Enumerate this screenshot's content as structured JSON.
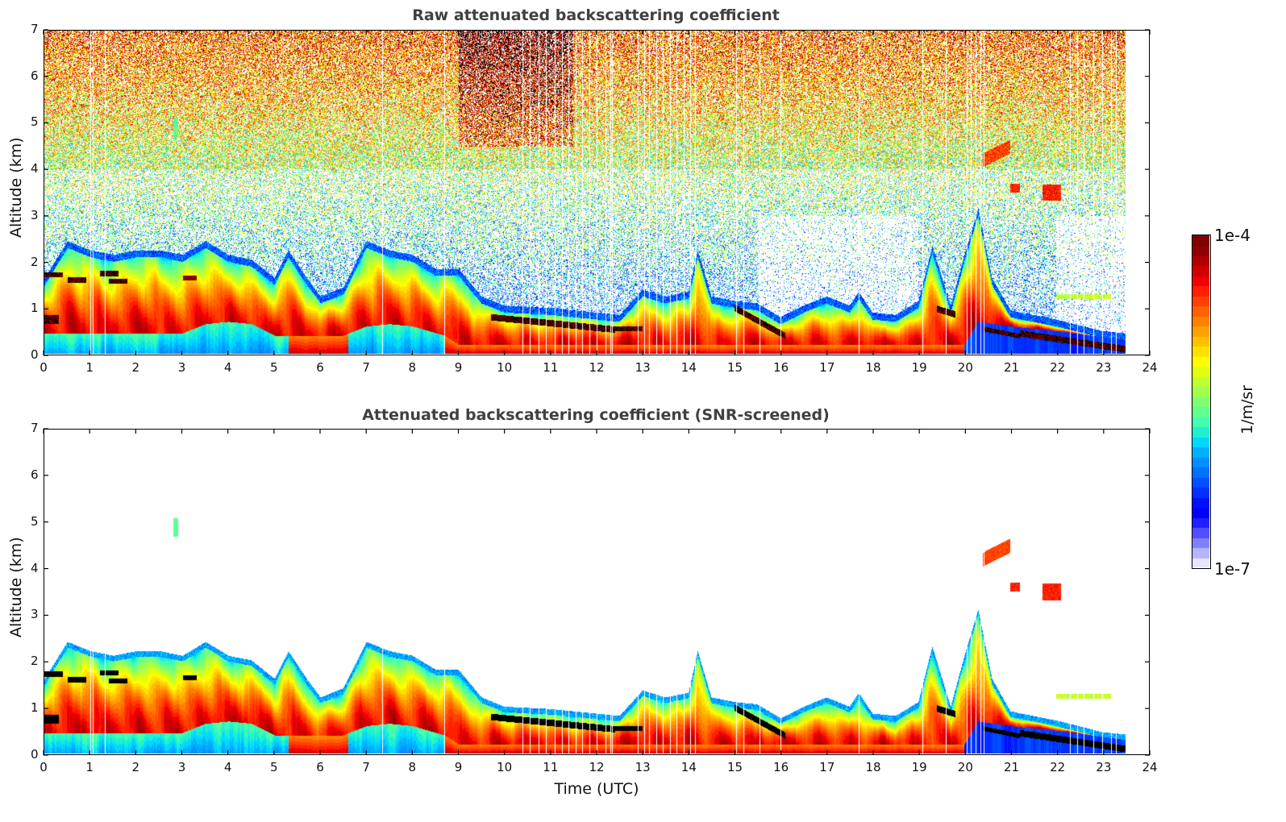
{
  "chart_data": [
    {
      "type": "heatmap",
      "title": "Raw attenuated backscattering coefficient",
      "xlabel": "",
      "ylabel": "Altitude (km)",
      "xlim": [
        0,
        24
      ],
      "ylim": [
        0,
        7
      ],
      "x_ticks": [
        "0",
        "1",
        "2",
        "3",
        "4",
        "5",
        "6",
        "7",
        "8",
        "9",
        "10",
        "11",
        "12",
        "13",
        "14",
        "15",
        "16",
        "17",
        "18",
        "19",
        "20",
        "21",
        "22",
        "23",
        "24"
      ],
      "y_ticks": [
        "0",
        "1",
        "2",
        "3",
        "4",
        "5",
        "6",
        "7"
      ],
      "screened": false,
      "data_end_time": 23.5
    },
    {
      "type": "heatmap",
      "title": "Attenuated backscattering coefficient (SNR-screened)",
      "xlabel": "Time (UTC)",
      "ylabel": "Altitude (km)",
      "xlim": [
        0,
        24
      ],
      "ylim": [
        0,
        7
      ],
      "x_ticks": [
        "0",
        "1",
        "2",
        "3",
        "4",
        "5",
        "6",
        "7",
        "8",
        "9",
        "10",
        "11",
        "12",
        "13",
        "14",
        "15",
        "16",
        "17",
        "18",
        "19",
        "20",
        "21",
        "22",
        "23",
        "24"
      ],
      "y_ticks": [
        "0",
        "1",
        "2",
        "3",
        "4",
        "5",
        "6",
        "7"
      ],
      "screened": true,
      "data_end_time": 23.5
    }
  ],
  "colorbar": {
    "label": "1/m/sr",
    "min_label": "1e-7",
    "max_label": "1e-4",
    "scale": "log",
    "range": [
      1e-07,
      0.0001
    ],
    "colors": [
      "#e6e6fa",
      "#b4b4ff",
      "#8080ff",
      "#5050ff",
      "#2020ff",
      "#0000ff",
      "#0010ff",
      "#0030ff",
      "#0050ff",
      "#0070ff",
      "#0090ff",
      "#00b0ff",
      "#00d8ff",
      "#20f0d0",
      "#40ffb0",
      "#60ff90",
      "#80ff70",
      "#a0ff50",
      "#c0ff30",
      "#e0ff10",
      "#ffff00",
      "#ffe000",
      "#ffc000",
      "#ffa000",
      "#ff8000",
      "#ff6000",
      "#ff4000",
      "#ff2000",
      "#f00000",
      "#d00000",
      "#b00000",
      "#900000",
      "#800000"
    ]
  },
  "boundary_layer": {
    "mixing_layer_top_km": [
      [
        0,
        1.5
      ],
      [
        0.5,
        2.3
      ],
      [
        1,
        2.1
      ],
      [
        1.5,
        2.0
      ],
      [
        2,
        2.1
      ],
      [
        2.5,
        2.1
      ],
      [
        3,
        2.0
      ],
      [
        3.5,
        2.3
      ],
      [
        4,
        2.0
      ],
      [
        4.5,
        1.9
      ],
      [
        5,
        1.5
      ],
      [
        5.3,
        2.1
      ],
      [
        5.7,
        1.5
      ],
      [
        6,
        1.1
      ],
      [
        6.5,
        1.3
      ],
      [
        7,
        2.3
      ],
      [
        7.5,
        2.1
      ],
      [
        8,
        2.0
      ],
      [
        8.5,
        1.7
      ],
      [
        9,
        1.7
      ],
      [
        9.5,
        1.1
      ],
      [
        10,
        0.9
      ],
      [
        11,
        0.85
      ],
      [
        12,
        0.75
      ],
      [
        12.5,
        0.7
      ],
      [
        13,
        1.25
      ],
      [
        13.5,
        1.1
      ],
      [
        14,
        1.2
      ],
      [
        14.2,
        2.1
      ],
      [
        14.5,
        1.1
      ],
      [
        15,
        1.0
      ],
      [
        15.5,
        0.95
      ],
      [
        16,
        0.65
      ],
      [
        16.5,
        0.9
      ],
      [
        17,
        1.1
      ],
      [
        17.5,
        0.9
      ],
      [
        17.7,
        1.2
      ],
      [
        18,
        0.75
      ],
      [
        18.5,
        0.7
      ],
      [
        19,
        1.0
      ],
      [
        19.3,
        2.2
      ],
      [
        19.7,
        0.9
      ],
      [
        20,
        2.0
      ],
      [
        20.3,
        3.0
      ],
      [
        20.6,
        1.5
      ],
      [
        21,
        0.8
      ],
      [
        22,
        0.6
      ],
      [
        23,
        0.35
      ],
      [
        23.5,
        0.3
      ]
    ],
    "residual_layer_top_km": [
      [
        0,
        0.45
      ],
      [
        2,
        0.45
      ],
      [
        3,
        0.45
      ],
      [
        3.5,
        0.65
      ],
      [
        4,
        0.7
      ],
      [
        4.5,
        0.65
      ],
      [
        5,
        0.4
      ],
      [
        6.5,
        0.4
      ],
      [
        7,
        0.6
      ],
      [
        7.5,
        0.65
      ],
      [
        8,
        0.6
      ],
      [
        8.7,
        0.4
      ],
      [
        9,
        0.2
      ],
      [
        20,
        0.2
      ],
      [
        20.3,
        0.7
      ],
      [
        21,
        0.6
      ],
      [
        22,
        0.5
      ],
      [
        23.5,
        0.3
      ]
    ]
  },
  "cloud_features": [
    {
      "t0": 0.0,
      "t1": 0.4,
      "alt": 1.72,
      "thick": 0.12,
      "value": -4.0
    },
    {
      "t0": 0.0,
      "t1": 0.3,
      "alt": 0.75,
      "thick": 0.18,
      "value": -4.0
    },
    {
      "t0": 1.2,
      "t1": 1.6,
      "alt": 1.75,
      "thick": 0.12,
      "value": -4.0
    },
    {
      "t0": 1.4,
      "t1": 1.8,
      "alt": 1.58,
      "thick": 0.1,
      "value": -4.0
    },
    {
      "t0": 0.5,
      "t1": 0.9,
      "alt": 1.6,
      "thick": 0.12,
      "value": -4.0
    },
    {
      "t0": 3.0,
      "t1": 3.3,
      "alt": 1.65,
      "thick": 0.1,
      "value": -4.1
    },
    {
      "t0": 9.7,
      "t1": 12.4,
      "alt": 0.8,
      "thick": 0.14,
      "value": -4.0,
      "slope": -0.1
    },
    {
      "t0": 12.4,
      "t1": 13.0,
      "alt": 0.55,
      "thick": 0.1,
      "value": -4.0
    },
    {
      "t0": 15.0,
      "t1": 16.1,
      "alt": 1.0,
      "thick": 0.14,
      "value": -4.0,
      "slope": -0.55
    },
    {
      "t0": 19.4,
      "t1": 19.8,
      "alt": 0.98,
      "thick": 0.14,
      "value": -4.0,
      "slope": -0.3
    },
    {
      "t0": 20.4,
      "t1": 21.2,
      "alt": 0.55,
      "thick": 0.1,
      "value": -4.0,
      "slope": -0.2
    },
    {
      "t0": 21.2,
      "t1": 23.5,
      "alt": 0.45,
      "thick": 0.14,
      "value": -4.0,
      "slope": -0.15
    },
    {
      "t0": 20.4,
      "t1": 21.0,
      "alt": 4.2,
      "thick": 0.3,
      "value": -4.6,
      "slope": 0.5
    },
    {
      "t0": 21.0,
      "t1": 21.2,
      "alt": 3.6,
      "thick": 0.2,
      "value": -4.5
    },
    {
      "t0": 21.7,
      "t1": 22.1,
      "alt": 3.5,
      "thick": 0.35,
      "value": -4.5
    },
    {
      "t0": 22.0,
      "t1": 23.2,
      "alt": 1.25,
      "thick": 0.1,
      "value": -5.3
    },
    {
      "t0": 2.8,
      "t1": 2.9,
      "alt": 4.9,
      "thick": 0.4,
      "value": -5.6
    }
  ],
  "data_gaps_utc": [
    1.0,
    1.05,
    1.32,
    7.35,
    8.7,
    10.4,
    10.55,
    10.75,
    10.9,
    11.1,
    11.25,
    11.4,
    11.55,
    11.7,
    11.85,
    12.0,
    12.2,
    12.3,
    12.35,
    12.9,
    13.05,
    13.15,
    13.3,
    13.45,
    13.6,
    13.75,
    13.9,
    14.05,
    14.15,
    15.05,
    15.2,
    15.55,
    16.0,
    17.7,
    19.1,
    19.6,
    20.05,
    20.15,
    20.25,
    20.35,
    20.42,
    22.3,
    22.45,
    22.6,
    22.8,
    23.0,
    23.2,
    23.3
  ]
}
